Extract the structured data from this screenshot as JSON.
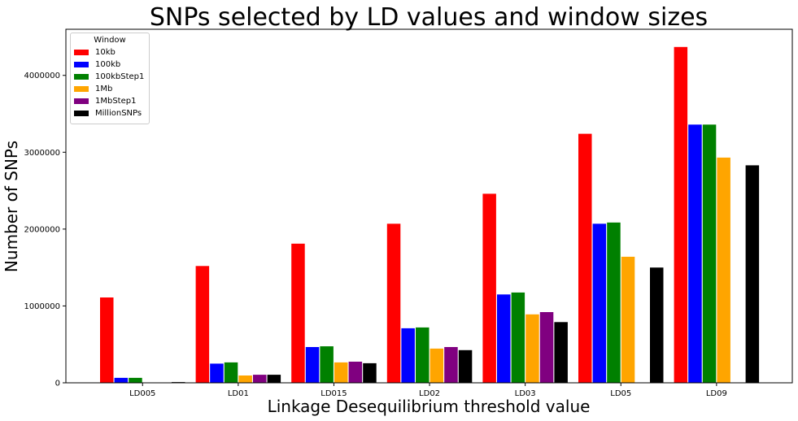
{
  "chart_data": {
    "type": "bar",
    "title": "SNPs selected by LD values and window sizes",
    "xlabel": "Linkage Desequilibrium threshold value",
    "ylabel": "Number of SNPs",
    "categories": [
      "LD005",
      "LD01",
      "LD015",
      "LD02",
      "LD03",
      "LD05",
      "LD09"
    ],
    "ylim": [
      0,
      4600000
    ],
    "yticks": [
      0,
      1000000,
      2000000,
      3000000,
      4000000
    ],
    "legend": {
      "title": "Window",
      "placement": "top-left"
    },
    "series": [
      {
        "name": "10kb",
        "color": "#ff0000",
        "values": [
          1110000,
          1520000,
          1810000,
          2070000,
          2460000,
          3240000,
          4370000
        ]
      },
      {
        "name": "100kb",
        "color": "#0000ff",
        "values": [
          65000,
          250000,
          465000,
          710000,
          1150000,
          2070000,
          3360000
        ]
      },
      {
        "name": "100kbStep1",
        "color": "#008000",
        "values": [
          65000,
          265000,
          475000,
          720000,
          1175000,
          2085000,
          3360000
        ]
      },
      {
        "name": "1Mb",
        "color": "#ffa500",
        "values": [
          0,
          95000,
          265000,
          445000,
          890000,
          1640000,
          2930000
        ]
      },
      {
        "name": "1MbStep1",
        "color": "#800080",
        "values": [
          0,
          105000,
          275000,
          465000,
          920000,
          0,
          0
        ]
      },
      {
        "name": "MillionSNPs",
        "color": "#000000",
        "values": [
          10000,
          105000,
          255000,
          425000,
          790000,
          1500000,
          2830000
        ]
      }
    ]
  }
}
